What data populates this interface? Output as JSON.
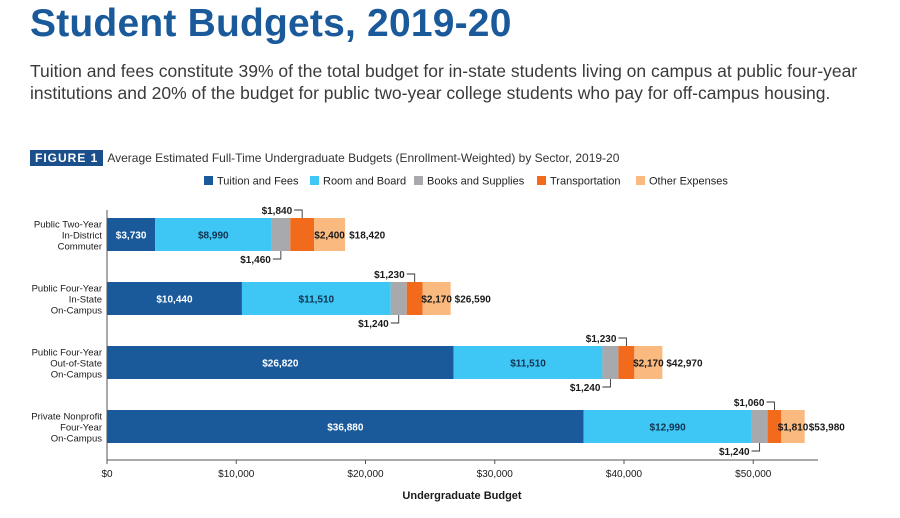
{
  "page": {
    "title": "Student Budgets, 2019-20",
    "subtitle": "Tuition and fees constitute 39% of the total budget for in-state students living on campus at public four-year institutions and 20% of the budget for public two-year college students who pay for off-campus housing."
  },
  "figure": {
    "label": "FIGURE 1",
    "caption": "Average Estimated Full-Time Undergraduate Budgets (Enrollment-Weighted) by Sector, 2019-20"
  },
  "chart_data": {
    "type": "bar",
    "orientation": "horizontal",
    "stacked": true,
    "title": "",
    "xlabel": "Undergraduate Budget",
    "ylabel": "",
    "xlim": [
      0,
      54000
    ],
    "x_ticks": [
      0,
      10000,
      20000,
      30000,
      40000,
      50000
    ],
    "x_tick_labels": [
      "$0",
      "$10,000",
      "$20,000",
      "$30,000",
      "$40,000",
      "$50,000"
    ],
    "grid": false,
    "legend_position": "top",
    "categories": [
      [
        "Public Two-Year",
        "In-District",
        "Commuter"
      ],
      [
        "Public Four-Year",
        "In-State",
        "On-Campus"
      ],
      [
        "Public Four-Year",
        "Out-of-State",
        "On-Campus"
      ],
      [
        "Private Nonprofit",
        "Four-Year",
        "On-Campus"
      ]
    ],
    "series": [
      {
        "name": "Tuition and Fees",
        "color": "#1a5a9a",
        "values": [
          3730,
          10440,
          26820,
          36880
        ],
        "labels": [
          "$3,730",
          "$10,440",
          "$26,820",
          "$36,880"
        ]
      },
      {
        "name": "Room and Board",
        "color": "#3ec6f4",
        "values": [
          8990,
          11510,
          11510,
          12990
        ],
        "labels": [
          "$8,990",
          "$11,510",
          "$11,510",
          "$12,990"
        ]
      },
      {
        "name": "Books and Supplies",
        "color": "#a8a9ac",
        "values": [
          1460,
          1240,
          1240,
          1240
        ],
        "labels": [
          "$1,460",
          "$1,240",
          "$1,240",
          "$1,240"
        ]
      },
      {
        "name": "Transportation",
        "color": "#f26b1d",
        "values": [
          1840,
          1230,
          1230,
          1060
        ],
        "labels": [
          "$1,840",
          "$1,230",
          "$1,230",
          "$1,060"
        ]
      },
      {
        "name": "Other Expenses",
        "color": "#f9b97f",
        "values": [
          2400,
          2170,
          2170,
          1810
        ],
        "labels": [
          "$2,400",
          "$2,170",
          "$2,170",
          "$1,810"
        ]
      }
    ],
    "totals": [
      18420,
      26590,
      42970,
      53980
    ],
    "total_labels": [
      "$18,420",
      "$26,590",
      "$42,970",
      "$53,980"
    ]
  }
}
